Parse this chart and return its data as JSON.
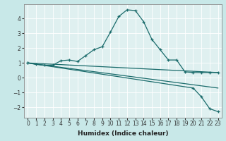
{
  "xlabel": "Humidex (Indice chaleur)",
  "xlim": [
    -0.5,
    23.5
  ],
  "ylim": [
    -2.7,
    5.0
  ],
  "yticks": [
    -2,
    -1,
    0,
    1,
    2,
    3,
    4
  ],
  "xticks": [
    0,
    1,
    2,
    3,
    4,
    5,
    6,
    7,
    8,
    9,
    10,
    11,
    12,
    13,
    14,
    15,
    16,
    17,
    18,
    19,
    20,
    21,
    22,
    23
  ],
  "bg_outer": "#c8e8e8",
  "bg_plot": "#dff0f0",
  "grid_color": "#ffffff",
  "line_color": "#1a6b6b",
  "line1_x": [
    0,
    1,
    2,
    3,
    4,
    5,
    6,
    7,
    8,
    9,
    10,
    11,
    12,
    13,
    14,
    15,
    16,
    17,
    18,
    19,
    20,
    21,
    22,
    23
  ],
  "line1_y": [
    1.0,
    0.9,
    0.85,
    0.85,
    1.15,
    1.2,
    1.1,
    1.5,
    1.9,
    2.1,
    3.1,
    4.15,
    4.6,
    4.55,
    3.8,
    2.6,
    1.9,
    1.2,
    1.2,
    0.4,
    0.35,
    0.35,
    0.35,
    0.35
  ],
  "line2_x": [
    0,
    23
  ],
  "line2_y": [
    1.0,
    0.35
  ],
  "line3_x": [
    0,
    23
  ],
  "line3_y": [
    1.0,
    -0.7
  ],
  "line4_x": [
    0,
    20,
    21,
    22,
    23
  ],
  "line4_y": [
    1.0,
    -0.7,
    -1.3,
    -2.1,
    -2.3
  ]
}
